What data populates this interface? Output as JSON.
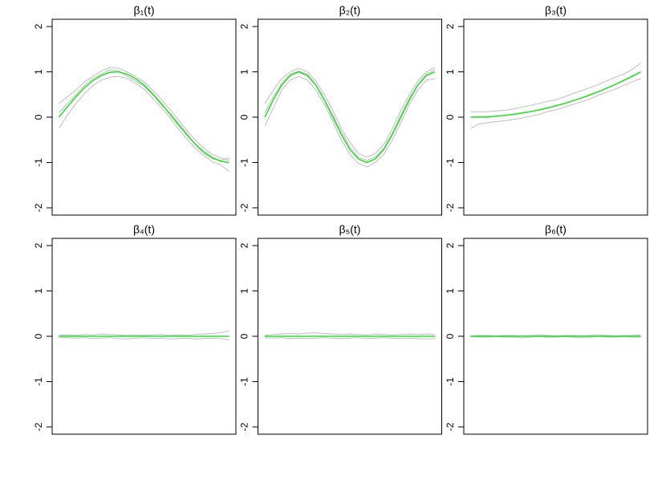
{
  "chart_data": [
    {
      "type": "line",
      "title": "β₁(t)",
      "x": [
        0,
        0.05,
        0.1,
        0.15,
        0.2,
        0.25,
        0.3,
        0.35,
        0.4,
        0.45,
        0.5,
        0.55,
        0.6,
        0.65,
        0.7,
        0.75,
        0.8,
        0.85,
        0.9,
        0.95,
        1
      ],
      "xlim": [
        -0.04,
        1.04
      ],
      "ylim": [
        -2.16,
        2.16
      ],
      "yticks": [
        -2,
        -1,
        0,
        1,
        2
      ],
      "series": [
        {
          "color": "#bebebe",
          "values": [
            0.3,
            0.45,
            0.6,
            0.78,
            0.9,
            1.02,
            1.1,
            1.08,
            1.0,
            0.9,
            0.78,
            0.6,
            0.4,
            0.18,
            -0.05,
            -0.28,
            -0.5,
            -0.68,
            -0.82,
            -0.9,
            -0.95
          ]
        },
        {
          "color": "#bebebe",
          "values": [
            -0.25,
            0.05,
            0.3,
            0.52,
            0.7,
            0.82,
            0.88,
            0.9,
            0.85,
            0.75,
            0.62,
            0.42,
            0.22,
            0.0,
            -0.25,
            -0.48,
            -0.68,
            -0.85,
            -0.98,
            -1.05,
            -1.2
          ]
        },
        {
          "color": "#bebebe",
          "values": [
            0.1,
            0.3,
            0.5,
            0.7,
            0.85,
            0.95,
            1.05,
            1.02,
            0.9,
            0.8,
            0.68,
            0.5,
            0.28,
            0.1,
            -0.12,
            -0.35,
            -0.6,
            -0.8,
            -0.92,
            -0.95,
            -0.9
          ]
        },
        {
          "color": "#33dd33",
          "values": [
            0,
            0.23,
            0.45,
            0.65,
            0.81,
            0.92,
            0.99,
            1.0,
            0.95,
            0.85,
            0.71,
            0.52,
            0.31,
            0.08,
            -0.16,
            -0.38,
            -0.59,
            -0.76,
            -0.89,
            -0.97,
            -1
          ]
        }
      ]
    },
    {
      "type": "line",
      "title": "β₂(t)",
      "x": [
        0,
        0.05,
        0.1,
        0.15,
        0.2,
        0.25,
        0.3,
        0.35,
        0.4,
        0.45,
        0.5,
        0.55,
        0.6,
        0.65,
        0.7,
        0.75,
        0.8,
        0.85,
        0.9,
        0.95,
        1
      ],
      "xlim": [
        -0.04,
        1.04
      ],
      "ylim": [
        -2.16,
        2.16
      ],
      "yticks": [
        -2,
        -1,
        0,
        1,
        2
      ],
      "series": [
        {
          "color": "#bebebe",
          "values": [
            0.3,
            0.6,
            0.85,
            1.0,
            1.08,
            1.0,
            0.8,
            0.5,
            0.15,
            -0.25,
            -0.55,
            -0.8,
            -0.88,
            -0.8,
            -0.6,
            -0.25,
            0.15,
            0.5,
            0.8,
            1.0,
            1.1
          ]
        },
        {
          "color": "#bebebe",
          "values": [
            -0.2,
            0.2,
            0.6,
            0.82,
            0.9,
            0.82,
            0.6,
            0.28,
            -0.1,
            -0.5,
            -0.82,
            -1.02,
            -1.1,
            -1.0,
            -0.82,
            -0.5,
            -0.12,
            0.28,
            0.6,
            0.82,
            0.85
          ]
        },
        {
          "color": "#bebebe",
          "values": [
            0.1,
            0.45,
            0.75,
            0.95,
            1.02,
            0.95,
            0.72,
            0.4,
            0.05,
            -0.32,
            -0.65,
            -0.88,
            -0.95,
            -0.88,
            -0.68,
            -0.35,
            0.05,
            0.42,
            0.72,
            0.95,
            1.05
          ]
        },
        {
          "color": "#33dd33",
          "values": [
            0,
            0.38,
            0.71,
            0.92,
            1,
            0.92,
            0.71,
            0.38,
            0,
            -0.38,
            -0.71,
            -0.92,
            -1,
            -0.92,
            -0.71,
            -0.38,
            0,
            0.38,
            0.71,
            0.92,
            1
          ]
        }
      ]
    },
    {
      "type": "line",
      "title": "β₃(t)",
      "x": [
        0,
        0.05,
        0.1,
        0.15,
        0.2,
        0.25,
        0.3,
        0.35,
        0.4,
        0.45,
        0.5,
        0.55,
        0.6,
        0.65,
        0.7,
        0.75,
        0.8,
        0.85,
        0.9,
        0.95,
        1
      ],
      "xlim": [
        -0.04,
        1.04
      ],
      "ylim": [
        -2.16,
        2.16
      ],
      "yticks": [
        -2,
        -1,
        0,
        1,
        2
      ],
      "series": [
        {
          "color": "#bebebe",
          "values": [
            0.12,
            0.12,
            0.12,
            0.14,
            0.15,
            0.18,
            0.22,
            0.26,
            0.3,
            0.35,
            0.38,
            0.45,
            0.52,
            0.58,
            0.65,
            0.72,
            0.8,
            0.88,
            0.95,
            1.05,
            1.2
          ]
        },
        {
          "color": "#bebebe",
          "values": [
            -0.25,
            -0.15,
            -0.12,
            -0.1,
            -0.08,
            -0.05,
            -0.02,
            0.02,
            0.06,
            0.12,
            0.16,
            0.22,
            0.28,
            0.34,
            0.4,
            0.48,
            0.55,
            0.62,
            0.7,
            0.78,
            0.85
          ]
        },
        {
          "color": "#bebebe",
          "values": [
            0.0,
            0.02,
            -0.02,
            0.04,
            0.03,
            0.07,
            0.1,
            0.12,
            0.16,
            0.2,
            0.26,
            0.3,
            0.36,
            0.42,
            0.5,
            0.56,
            0.64,
            0.72,
            0.8,
            0.92,
            1.0
          ]
        },
        {
          "color": "#33dd33",
          "values": [
            0,
            0,
            0.01,
            0.02,
            0.04,
            0.06,
            0.09,
            0.12,
            0.16,
            0.2,
            0.25,
            0.3,
            0.36,
            0.42,
            0.49,
            0.56,
            0.64,
            0.72,
            0.81,
            0.9,
            1
          ]
        }
      ]
    },
    {
      "type": "line",
      "title": "β₄(t)",
      "x": [
        0,
        0.05,
        0.1,
        0.15,
        0.2,
        0.25,
        0.3,
        0.35,
        0.4,
        0.45,
        0.5,
        0.55,
        0.6,
        0.65,
        0.7,
        0.75,
        0.8,
        0.85,
        0.9,
        0.95,
        1
      ],
      "xlim": [
        -0.04,
        1.04
      ],
      "ylim": [
        -2.16,
        2.16
      ],
      "yticks": [
        -2,
        -1,
        0,
        1,
        2
      ],
      "series": [
        {
          "color": "#bebebe",
          "values": [
            0.02,
            0.03,
            0.02,
            0.04,
            0.03,
            0.05,
            0.04,
            0.03,
            0.02,
            0.03,
            0.02,
            0.03,
            0.04,
            0.02,
            0.03,
            0.02,
            0.04,
            0.05,
            0.06,
            0.08,
            0.12
          ]
        },
        {
          "color": "#bebebe",
          "values": [
            -0.02,
            -0.03,
            -0.04,
            -0.03,
            -0.05,
            -0.04,
            -0.03,
            -0.05,
            -0.06,
            -0.04,
            -0.03,
            -0.05,
            -0.04,
            -0.06,
            -0.05,
            -0.04,
            -0.06,
            -0.05,
            -0.04,
            -0.05,
            -0.08
          ]
        },
        {
          "color": "#33dd33",
          "values": [
            0,
            0,
            0,
            0,
            0,
            0,
            0,
            0,
            0,
            0,
            0,
            0,
            0,
            0,
            0,
            0,
            0,
            0,
            0,
            0,
            0
          ]
        }
      ]
    },
    {
      "type": "line",
      "title": "β₅(t)",
      "x": [
        0,
        0.05,
        0.1,
        0.15,
        0.2,
        0.25,
        0.3,
        0.35,
        0.4,
        0.45,
        0.5,
        0.55,
        0.6,
        0.65,
        0.7,
        0.75,
        0.8,
        0.85,
        0.9,
        0.95,
        1
      ],
      "xlim": [
        -0.04,
        1.04
      ],
      "ylim": [
        -2.16,
        2.16
      ],
      "yticks": [
        -2,
        -1,
        0,
        1,
        2
      ],
      "series": [
        {
          "color": "#bebebe",
          "values": [
            0.02,
            0.04,
            0.05,
            0.06,
            0.05,
            0.07,
            0.08,
            0.06,
            0.05,
            0.04,
            0.05,
            0.04,
            0.03,
            0.05,
            0.04,
            0.03,
            0.04,
            0.05,
            0.04,
            0.05,
            0.04
          ]
        },
        {
          "color": "#bebebe",
          "values": [
            -0.03,
            -0.04,
            -0.03,
            -0.05,
            -0.04,
            -0.05,
            -0.04,
            -0.03,
            -0.04,
            -0.05,
            -0.04,
            -0.03,
            -0.05,
            -0.04,
            -0.03,
            -0.04,
            -0.05,
            -0.04,
            -0.05,
            -0.06,
            -0.05
          ]
        },
        {
          "color": "#33dd33",
          "values": [
            0,
            0,
            0,
            0,
            0,
            0,
            0,
            0,
            0,
            0,
            0,
            0,
            0,
            0,
            0,
            0,
            0,
            0,
            0,
            0,
            0
          ]
        }
      ]
    },
    {
      "type": "line",
      "title": "β₆(t)",
      "x": [
        0,
        0.05,
        0.1,
        0.15,
        0.2,
        0.25,
        0.3,
        0.35,
        0.4,
        0.45,
        0.5,
        0.55,
        0.6,
        0.65,
        0.7,
        0.75,
        0.8,
        0.85,
        0.9,
        0.95,
        1
      ],
      "xlim": [
        -0.04,
        1.04
      ],
      "ylim": [
        -2.16,
        2.16
      ],
      "yticks": [
        -2,
        -1,
        0,
        1,
        2
      ],
      "series": [
        {
          "color": "#bebebe",
          "values": [
            0.01,
            0.02,
            0.02,
            0.01,
            0.02,
            0.02,
            0.01,
            0.02,
            0.03,
            0.02,
            0.01,
            0.02,
            0.02,
            0.01,
            0.02,
            0.03,
            0.02,
            0.01,
            0.02,
            0.02,
            0.03
          ]
        },
        {
          "color": "#bebebe",
          "values": [
            -0.01,
            -0.02,
            -0.02,
            -0.01,
            -0.02,
            -0.02,
            -0.03,
            -0.02,
            -0.01,
            -0.02,
            -0.02,
            -0.01,
            -0.02,
            -0.03,
            -0.02,
            -0.01,
            -0.02,
            -0.02,
            -0.01,
            -0.02,
            -0.02
          ]
        },
        {
          "color": "#33dd33",
          "values": [
            0,
            0,
            0,
            0,
            0,
            0,
            0,
            0,
            0,
            0,
            0,
            0,
            0,
            0,
            0,
            0,
            0,
            0,
            0,
            0,
            0
          ]
        }
      ]
    }
  ]
}
